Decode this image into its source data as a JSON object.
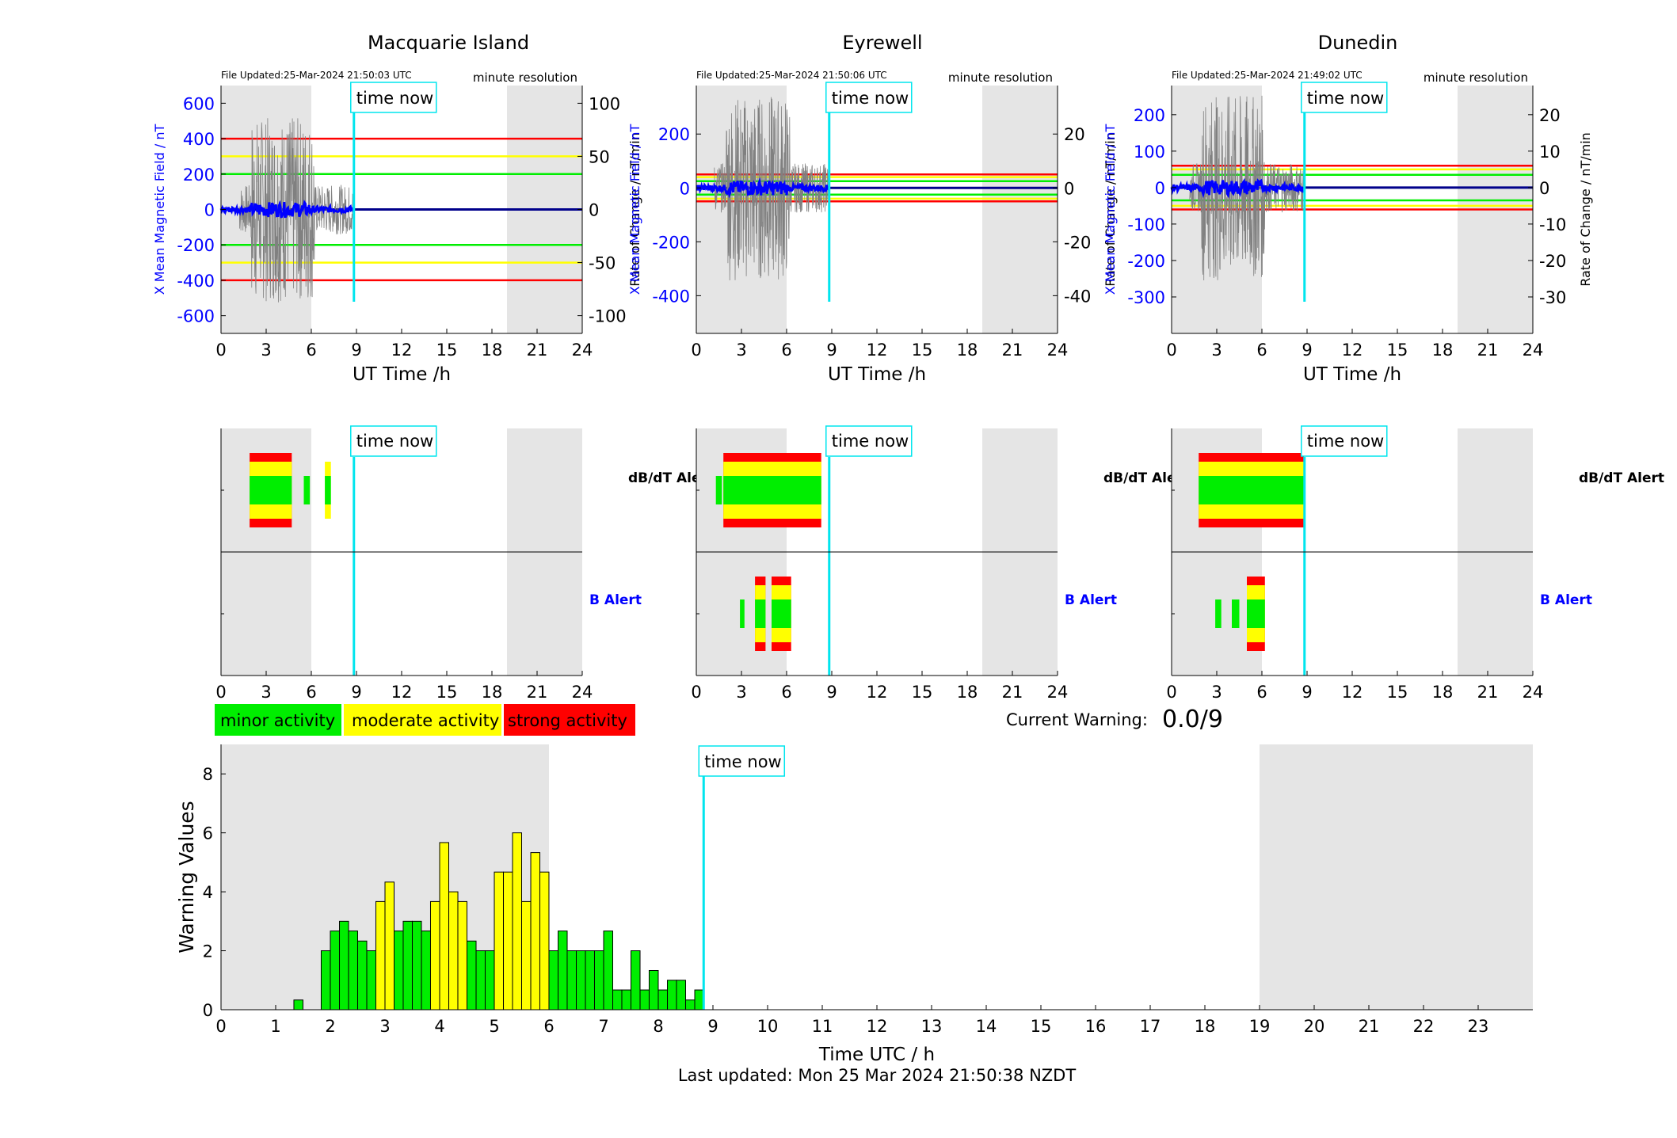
{
  "colors": {
    "green": "#00ee00",
    "yellow": "#ffff00",
    "red": "#ff0000",
    "blue": "#0000ff",
    "cyan": "#00e5ee",
    "night_shade": "#e5e5e5",
    "trace_gray": "#808080"
  },
  "magnetometer": {
    "resolution_label": "minute resolution",
    "x_axis_label": "UT Time /h",
    "x_ticks": [
      "0",
      "3",
      "6",
      "9",
      "12",
      "15",
      "18",
      "21",
      "24"
    ],
    "x_range": [
      0,
      24
    ],
    "now_hour": 8.83,
    "left_axis_label": "X Mean Magnetic Field / nT",
    "right_axis_label": "Rate of Change / nT/min",
    "time_now_label": "time now",
    "stations": [
      {
        "name": "Macquarie Island",
        "file_updated": "File Updated:25-Mar-2024 21:50:03 UTC",
        "night_hours": [
          [
            0,
            6
          ],
          [
            19,
            24
          ]
        ],
        "y_left_range": [
          -700,
          700
        ],
        "y_left_ticks": [
          "-600",
          "-400",
          "-200",
          "0",
          "200",
          "400",
          "600"
        ],
        "y_right_range": [
          -116.7,
          116.7
        ],
        "y_right_ticks": [
          "-100",
          "-50",
          "0",
          "50",
          "100"
        ],
        "thresholds_nT": [
          {
            "level": "strong",
            "values": [
              400,
              -400
            ]
          },
          {
            "level": "moderate",
            "values": [
              300,
              -300
            ]
          },
          {
            "level": "minor",
            "values": [
              200,
              -200
            ]
          }
        ]
      },
      {
        "name": "Eyrewell",
        "file_updated": "File Updated:25-Mar-2024 21:50:06 UTC",
        "night_hours": [
          [
            0,
            6
          ],
          [
            19,
            24
          ]
        ],
        "y_left_range": [
          -540,
          380
        ],
        "y_left_ticks": [
          "-400",
          "-200",
          "0",
          "200"
        ],
        "y_right_range": [
          -54,
          38
        ],
        "y_right_ticks": [
          "-40",
          "-20",
          "0",
          "20"
        ],
        "thresholds_nT": [
          {
            "level": "strong",
            "values": [
              50,
              -50
            ]
          },
          {
            "level": "moderate",
            "values": [
              40,
              -40
            ]
          },
          {
            "level": "minor",
            "values": [
              25,
              -25
            ]
          }
        ]
      },
      {
        "name": "Dunedin",
        "file_updated": "File Updated:25-Mar-2024 21:49:02 UTC",
        "night_hours": [
          [
            0,
            6
          ],
          [
            19,
            24
          ]
        ],
        "y_left_range": [
          -400,
          280
        ],
        "y_left_ticks": [
          "-300",
          "-200",
          "-100",
          "0",
          "100",
          "200"
        ],
        "y_right_range": [
          -40,
          28
        ],
        "y_right_ticks": [
          "-30",
          "-20",
          "-10",
          "0",
          "10",
          "20"
        ],
        "thresholds_nT": [
          {
            "level": "strong",
            "values": [
              60,
              -60
            ]
          },
          {
            "level": "moderate",
            "values": [
              50,
              -50
            ]
          },
          {
            "level": "minor",
            "values": [
              35,
              -35
            ]
          }
        ]
      }
    ]
  },
  "alerts": {
    "dbdt_label": "dB/dT Alert",
    "b_label": "B Alert",
    "time_now_label": "time now",
    "x_ticks": [
      "0",
      "3",
      "6",
      "9",
      "12",
      "15",
      "18",
      "21",
      "24"
    ],
    "stations": [
      {
        "name": "Macquarie Island",
        "dbdt": [
          {
            "start": 1.9,
            "end": 4.7,
            "level": 3
          },
          {
            "start": 5.5,
            "end": 5.9,
            "level": 1
          },
          {
            "start": 6.9,
            "end": 7.3,
            "level": 2
          }
        ],
        "b": []
      },
      {
        "name": "Eyrewell",
        "dbdt": [
          {
            "start": 1.3,
            "end": 1.7,
            "level": 1
          },
          {
            "start": 1.8,
            "end": 8.3,
            "level": 3
          }
        ],
        "b": [
          {
            "start": 2.9,
            "end": 3.2,
            "level": 1
          },
          {
            "start": 3.9,
            "end": 4.6,
            "level": 3
          },
          {
            "start": 5.0,
            "end": 6.3,
            "level": 3
          }
        ]
      },
      {
        "name": "Dunedin",
        "dbdt": [
          {
            "start": 1.8,
            "end": 8.8,
            "level": 3
          }
        ],
        "b": [
          {
            "start": 2.9,
            "end": 3.3,
            "level": 1
          },
          {
            "start": 4.0,
            "end": 4.5,
            "level": 1
          },
          {
            "start": 5.0,
            "end": 6.2,
            "level": 3
          }
        ]
      }
    ]
  },
  "legend": {
    "minor": "minor activity",
    "moderate": "moderate activity",
    "strong": "strong activity"
  },
  "current_warning": {
    "label": "Current Warning:",
    "value": "0.0/9"
  },
  "chart_data": {
    "type": "bar",
    "xlabel": "Time UTC / h",
    "ylabel": "Warning Values",
    "xlim": [
      0,
      24
    ],
    "ylim": [
      0,
      9
    ],
    "x_ticks": [
      "0",
      "1",
      "2",
      "3",
      "4",
      "5",
      "6",
      "7",
      "8",
      "9",
      "10",
      "11",
      "12",
      "13",
      "14",
      "15",
      "16",
      "17",
      "18",
      "19",
      "20",
      "21",
      "22",
      "23"
    ],
    "y_ticks": [
      "0",
      "2",
      "4",
      "6",
      "8"
    ],
    "night_hours": [
      [
        0,
        6
      ],
      [
        19,
        24
      ]
    ],
    "now_hour": 8.83,
    "time_now_label": "time now",
    "bin_width_h": 0.1667,
    "bins": [
      {
        "start": 1.333,
        "value": 0.33,
        "level": "minor"
      },
      {
        "start": 1.833,
        "value": 2.0,
        "level": "minor"
      },
      {
        "start": 2.0,
        "value": 2.67,
        "level": "minor"
      },
      {
        "start": 2.167,
        "value": 3.0,
        "level": "minor"
      },
      {
        "start": 2.333,
        "value": 2.67,
        "level": "minor"
      },
      {
        "start": 2.5,
        "value": 2.33,
        "level": "minor"
      },
      {
        "start": 2.667,
        "value": 2.0,
        "level": "minor"
      },
      {
        "start": 2.833,
        "value": 3.67,
        "level": "moderate"
      },
      {
        "start": 3.0,
        "value": 4.33,
        "level": "moderate"
      },
      {
        "start": 3.167,
        "value": 2.67,
        "level": "minor"
      },
      {
        "start": 3.333,
        "value": 3.0,
        "level": "minor"
      },
      {
        "start": 3.5,
        "value": 3.0,
        "level": "minor"
      },
      {
        "start": 3.667,
        "value": 2.67,
        "level": "minor"
      },
      {
        "start": 3.833,
        "value": 3.67,
        "level": "moderate"
      },
      {
        "start": 4.0,
        "value": 5.67,
        "level": "moderate"
      },
      {
        "start": 4.167,
        "value": 4.0,
        "level": "moderate"
      },
      {
        "start": 4.333,
        "value": 3.67,
        "level": "moderate"
      },
      {
        "start": 4.5,
        "value": 2.33,
        "level": "minor"
      },
      {
        "start": 4.667,
        "value": 2.0,
        "level": "minor"
      },
      {
        "start": 4.833,
        "value": 2.0,
        "level": "minor"
      },
      {
        "start": 5.0,
        "value": 4.67,
        "level": "moderate"
      },
      {
        "start": 5.167,
        "value": 4.67,
        "level": "moderate"
      },
      {
        "start": 5.333,
        "value": 6.0,
        "level": "moderate"
      },
      {
        "start": 5.5,
        "value": 3.67,
        "level": "moderate"
      },
      {
        "start": 5.667,
        "value": 5.33,
        "level": "moderate"
      },
      {
        "start": 5.833,
        "value": 4.67,
        "level": "moderate"
      },
      {
        "start": 6.0,
        "value": 2.0,
        "level": "minor"
      },
      {
        "start": 6.167,
        "value": 2.67,
        "level": "minor"
      },
      {
        "start": 6.333,
        "value": 2.0,
        "level": "minor"
      },
      {
        "start": 6.5,
        "value": 2.0,
        "level": "minor"
      },
      {
        "start": 6.667,
        "value": 2.0,
        "level": "minor"
      },
      {
        "start": 6.833,
        "value": 2.0,
        "level": "minor"
      },
      {
        "start": 7.0,
        "value": 2.67,
        "level": "minor"
      },
      {
        "start": 7.167,
        "value": 0.67,
        "level": "minor"
      },
      {
        "start": 7.333,
        "value": 0.67,
        "level": "minor"
      },
      {
        "start": 7.5,
        "value": 2.0,
        "level": "minor"
      },
      {
        "start": 7.667,
        "value": 0.67,
        "level": "minor"
      },
      {
        "start": 7.833,
        "value": 1.33,
        "level": "minor"
      },
      {
        "start": 8.0,
        "value": 0.67,
        "level": "minor"
      },
      {
        "start": 8.167,
        "value": 1.0,
        "level": "minor"
      },
      {
        "start": 8.333,
        "value": 1.0,
        "level": "minor"
      },
      {
        "start": 8.5,
        "value": 0.33,
        "level": "minor"
      },
      {
        "start": 8.667,
        "value": 0.67,
        "level": "minor"
      }
    ]
  },
  "footer": {
    "last_updated": "Last updated: Mon 25 Mar 2024 21:50:38 NZDT"
  }
}
